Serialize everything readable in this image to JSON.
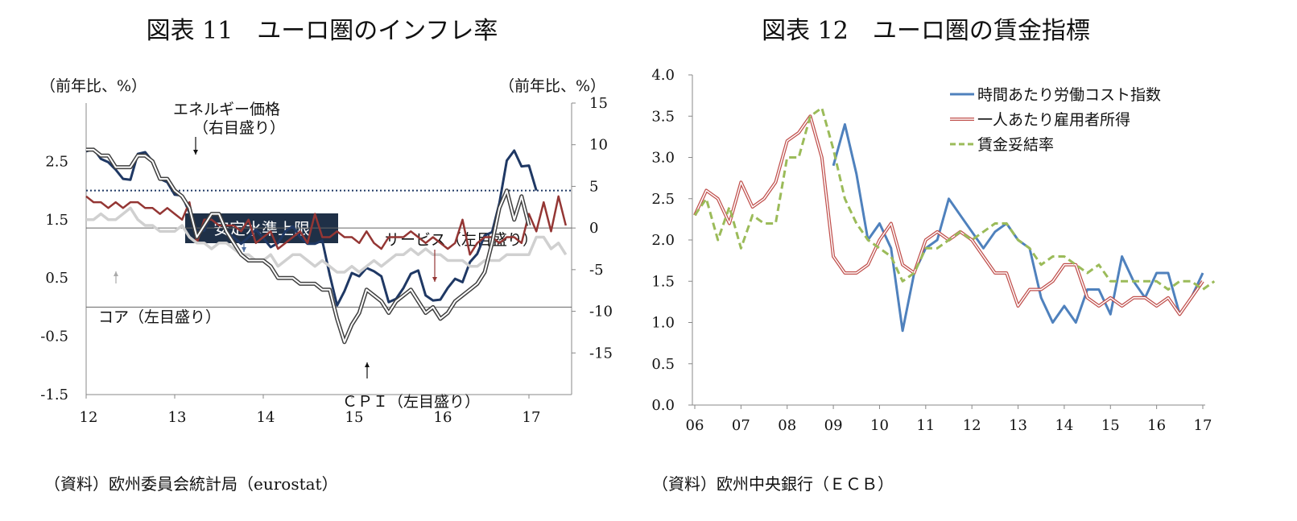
{
  "chart_data": [
    {
      "type": "line",
      "title": "図表 11　ユーロ圏のインフレ率",
      "ylabel_left": "（前年比、%）",
      "ylabel_right": "（前年比、%）",
      "source": "（資料）欧州委員会統計局（eurostat）",
      "x_ticks": [
        "12",
        "13",
        "14",
        "15",
        "16",
        "17"
      ],
      "y_left_ticks": [
        "2.5",
        "1.5",
        "0.5",
        "-0.5",
        "-1.5"
      ],
      "y_right_ticks": [
        "15",
        "10",
        "5",
        "0",
        "-5",
        "-10",
        "-15"
      ],
      "ylim_left": [
        -1.5,
        3.5
      ],
      "ylim_right": [
        -20,
        15
      ],
      "threshold": {
        "label": "安定水準上限",
        "value": 2.0
      },
      "annotations": {
        "energy": "エネルギー価格",
        "energy_axis": "（右目盛り）",
        "service": "サービス（左目盛り）",
        "core": "コア（左目盛り）",
        "cpi": "ＣＰＩ（左目盛り）"
      },
      "series": [
        {
          "name": "エネルギー価格",
          "axis": "right",
          "color": "#1f3864",
          "values": [
            9.2,
            9.5,
            8.3,
            7.9,
            7.0,
            5.9,
            5.8,
            8.9,
            9.1,
            8.0,
            5.9,
            5.5,
            4.0,
            3.9,
            1.8,
            -0.4,
            -0.3,
            1.7,
            1.6,
            -0.4,
            -1.1,
            -1.9,
            -1.1,
            -0.2,
            -1.2,
            -2.3,
            -1.8,
            -0.4,
            0.2,
            -1.1,
            -1.9,
            -1.9,
            -1.5,
            -5.6,
            -9.3,
            -7.6,
            -5.4,
            -5.8,
            -4.8,
            -5.2,
            -5.8,
            -8.9,
            -8.5,
            -7.2,
            -5.5,
            -5.1,
            -8.1,
            -8.7,
            -8.6,
            -7.2,
            -6.1,
            -6.5,
            -4.1,
            -3.1,
            -0.9,
            -0.5,
            3.0,
            8.1,
            9.3,
            7.4,
            7.5,
            4.5
          ]
        },
        {
          "name": "サービス（左目盛り）",
          "axis": "left",
          "color": "#943634",
          "values": [
            1.9,
            1.8,
            1.8,
            1.7,
            1.8,
            1.7,
            1.8,
            1.8,
            1.7,
            1.7,
            1.6,
            1.7,
            1.6,
            1.5,
            1.8,
            1.1,
            1.5,
            1.5,
            1.4,
            1.4,
            1.4,
            1.3,
            1.5,
            1.1,
            1.2,
            1.3,
            1.0,
            1.1,
            1.2,
            1.3,
            1.1,
            1.6,
            1.2,
            1.2,
            1.3,
            1.2,
            1.2,
            1.1,
            1.3,
            1.1,
            1.0,
            1.2,
            1.2,
            1.2,
            1.3,
            1.2,
            1.1,
            1.2,
            1.1,
            1.0,
            1.1,
            1.5,
            0.9,
            1.1,
            1.2,
            1.2,
            1.1,
            1.2,
            1.2,
            1.1,
            1.6,
            1.3,
            1.8,
            1.3,
            1.9,
            1.4
          ]
        },
        {
          "name": "コア（左目盛り）",
          "axis": "left",
          "color": "#d0d0d0",
          "values": [
            1.5,
            1.5,
            1.6,
            1.5,
            1.5,
            1.6,
            1.7,
            1.5,
            1.4,
            1.4,
            1.3,
            1.3,
            1.3,
            1.4,
            1.2,
            1.1,
            1.1,
            1.0,
            1.1,
            1.1,
            1.0,
            0.9,
            0.9,
            0.8,
            0.8,
            0.9,
            0.7,
            0.8,
            0.9,
            0.9,
            0.8,
            0.7,
            0.8,
            0.7,
            0.6,
            0.6,
            0.7,
            0.6,
            0.7,
            0.8,
            0.7,
            0.8,
            0.9,
            0.9,
            1.0,
            0.9,
            1.0,
            0.9,
            0.9,
            0.8,
            0.8,
            0.8,
            0.7,
            0.7,
            0.8,
            0.8,
            0.8,
            0.9,
            0.9,
            0.9,
            0.9,
            1.2,
            1.2,
            1.0,
            1.1,
            0.9
          ]
        },
        {
          "name": "ＣＰＩ（左目盛り）",
          "axis": "left",
          "color": "#404040",
          "double": true,
          "values": [
            2.7,
            2.7,
            2.6,
            2.6,
            2.4,
            2.4,
            2.4,
            2.6,
            2.6,
            2.5,
            2.2,
            2.2,
            2.0,
            1.9,
            1.7,
            1.2,
            1.4,
            1.6,
            1.6,
            1.3,
            1.1,
            0.9,
            0.8,
            0.8,
            0.8,
            0.7,
            0.5,
            0.5,
            0.5,
            0.4,
            0.4,
            0.4,
            0.3,
            0.3,
            -0.2,
            -0.6,
            -0.3,
            -0.1,
            0.3,
            0.2,
            0.1,
            -0.1,
            0.1,
            0.2,
            0.3,
            0.1,
            -0.1,
            0.0,
            -0.2,
            -0.1,
            0.1,
            0.2,
            0.3,
            0.4,
            0.6,
            1.1,
            1.7,
            2.0,
            1.5,
            1.9,
            1.4
          ]
        }
      ]
    },
    {
      "type": "line",
      "title": "図表 12　ユーロ圏の賃金指標",
      "source": "（資料）欧州中央銀行（ＥＣＢ）",
      "x_ticks": [
        "06",
        "07",
        "08",
        "09",
        "10",
        "11",
        "12",
        "13",
        "14",
        "15",
        "16",
        "17"
      ],
      "y_ticks": [
        "4.0",
        "3.5",
        "3.0",
        "2.5",
        "2.0",
        "1.5",
        "1.0",
        "0.5",
        "0.0"
      ],
      "ylim": [
        0.0,
        4.0
      ],
      "series": [
        {
          "name": "時間あたり労働コスト指数",
          "color": "#4f81bd",
          "style": "solid",
          "x_start": 2009.0,
          "step": 0.25,
          "values": [
            2.9,
            3.4,
            2.8,
            2.0,
            2.2,
            1.9,
            0.9,
            1.6,
            1.9,
            2.0,
            2.5,
            2.3,
            2.1,
            1.9,
            2.1,
            2.2,
            2.0,
            1.9,
            1.3,
            1.0,
            1.2,
            1.0,
            1.4,
            1.4,
            1.1,
            1.8,
            1.5,
            1.3,
            1.6,
            1.6,
            1.1,
            1.3,
            1.6
          ]
        },
        {
          "name": "一人あたり雇用者所得",
          "color": "#c0504d",
          "style": "double",
          "x_start": 2006.0,
          "step": 0.25,
          "values": [
            2.3,
            2.6,
            2.5,
            2.2,
            2.7,
            2.4,
            2.5,
            2.7,
            3.2,
            3.3,
            3.5,
            3.0,
            1.8,
            1.6,
            1.6,
            1.7,
            2.0,
            2.2,
            1.7,
            1.6,
            2.0,
            2.1,
            2.0,
            2.1,
            2.0,
            1.8,
            1.6,
            1.6,
            1.2,
            1.4,
            1.4,
            1.5,
            1.7,
            1.7,
            1.3,
            1.2,
            1.3,
            1.2,
            1.3,
            1.3,
            1.2,
            1.3,
            1.1,
            1.3,
            1.5
          ]
        },
        {
          "name": "賃金妥結率",
          "color": "#9bbb59",
          "style": "dashed",
          "x_start": 2006.0,
          "step": 0.25,
          "values": [
            2.3,
            2.5,
            2.0,
            2.4,
            1.9,
            2.3,
            2.2,
            2.2,
            3.0,
            3.0,
            3.5,
            3.6,
            3.1,
            2.5,
            2.2,
            2.0,
            1.9,
            1.8,
            1.5,
            1.6,
            1.9,
            1.9,
            2.0,
            2.1,
            2.0,
            2.1,
            2.2,
            2.2,
            2.0,
            1.9,
            1.7,
            1.8,
            1.8,
            1.7,
            1.6,
            1.7,
            1.5,
            1.5,
            1.5,
            1.5,
            1.5,
            1.4,
            1.5,
            1.5,
            1.4,
            1.5
          ]
        }
      ]
    }
  ]
}
